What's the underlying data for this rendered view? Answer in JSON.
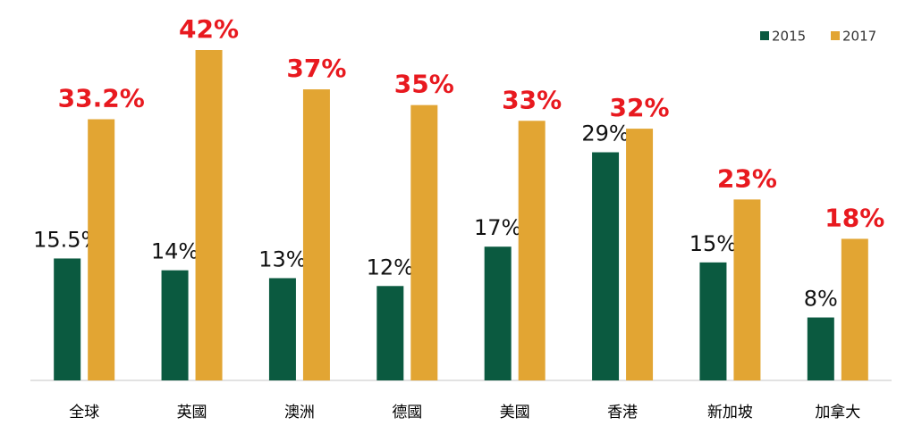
{
  "chart_data": {
    "type": "bar",
    "categories": [
      "全球",
      "英國",
      "澳洲",
      "德國",
      "美國",
      "香港",
      "新加坡",
      "加拿大"
    ],
    "series": [
      {
        "name": "2015",
        "color": "#0b5a40",
        "values": [
          15.5,
          14,
          13,
          12,
          17,
          29,
          15,
          8
        ],
        "value_labels": [
          "15.5%",
          "14%",
          "13%",
          "12%",
          "17%",
          "29%",
          "15%",
          "8%"
        ]
      },
      {
        "name": "2017",
        "color": "#e2a533",
        "values": [
          33.2,
          42,
          37,
          35,
          33,
          32,
          23,
          18
        ],
        "value_labels": [
          "33.2%",
          "42%",
          "37%",
          "35%",
          "33%",
          "32%",
          "23%",
          "18%"
        ]
      }
    ],
    "legend": "top-right"
  }
}
